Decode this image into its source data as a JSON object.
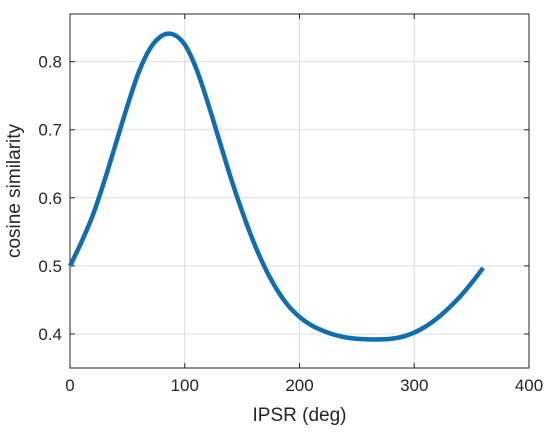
{
  "chart_data": {
    "type": "line",
    "xlabel": "IPSR (deg)",
    "ylabel": "cosine similarity",
    "xlim": [
      0,
      400
    ],
    "ylim": [
      0.35,
      0.87
    ],
    "xticks": [
      0,
      100,
      200,
      300,
      400
    ],
    "xtick_labels": [
      "0",
      "100",
      "200",
      "300",
      "400"
    ],
    "yticks": [
      0.4,
      0.5,
      0.6,
      0.7,
      0.8
    ],
    "ytick_labels": [
      "0.4",
      "0.5",
      "0.6",
      "0.7",
      "0.8"
    ],
    "grid": true,
    "series": [
      {
        "color": "#0f6db3",
        "x": [
          0,
          10,
          20,
          30,
          40,
          50,
          60,
          70,
          80,
          90,
          100,
          110,
          120,
          130,
          140,
          150,
          160,
          170,
          180,
          190,
          200,
          210,
          220,
          230,
          240,
          250,
          260,
          270,
          280,
          290,
          300,
          310,
          320,
          330,
          340,
          350,
          360
        ],
        "y": [
          0.5,
          0.535,
          0.575,
          0.625,
          0.68,
          0.735,
          0.785,
          0.82,
          0.838,
          0.84,
          0.825,
          0.79,
          0.74,
          0.685,
          0.63,
          0.58,
          0.535,
          0.497,
          0.466,
          0.442,
          0.425,
          0.413,
          0.405,
          0.399,
          0.395,
          0.393,
          0.392,
          0.392,
          0.393,
          0.396,
          0.402,
          0.411,
          0.423,
          0.438,
          0.455,
          0.475,
          0.497
        ]
      }
    ]
  }
}
